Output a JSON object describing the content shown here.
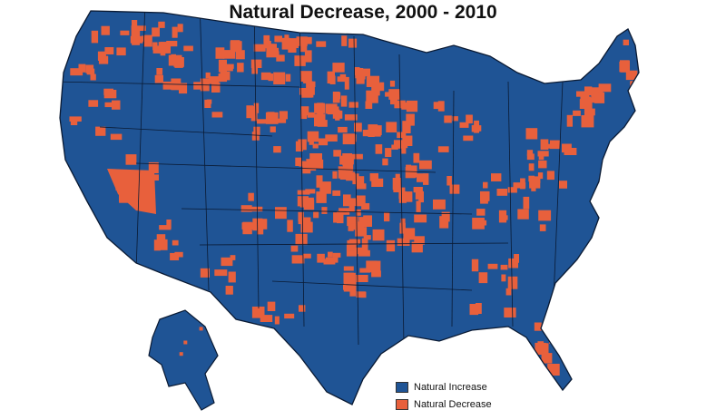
{
  "title": "Natural Decrease, 2000 - 2010",
  "colors": {
    "increase": "#1f5495",
    "decrease": "#e8603c",
    "border": "#0a1a33"
  },
  "legend": {
    "items": [
      {
        "key": "increase",
        "label": "Natural Increase"
      },
      {
        "key": "decrease",
        "label": "Natural Decrease"
      }
    ]
  }
}
